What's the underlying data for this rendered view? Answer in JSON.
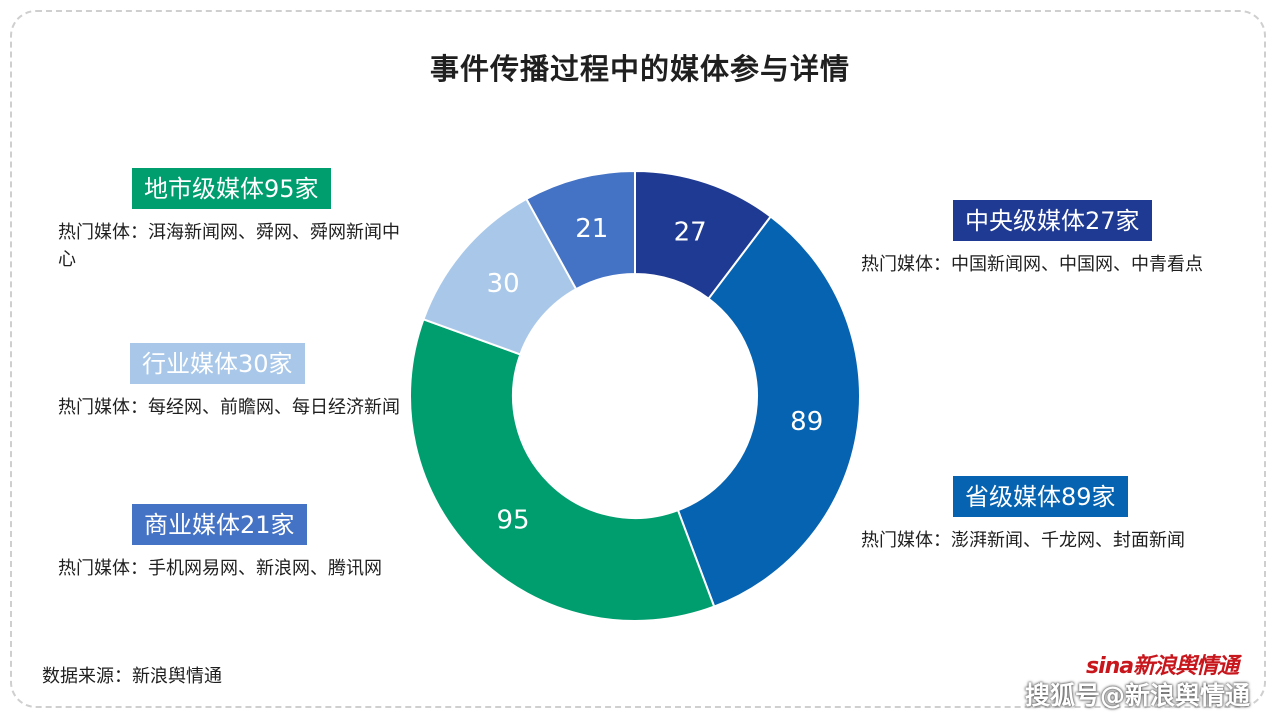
{
  "title": "事件传播过程中的媒体参与详情",
  "labels": [
    {
      "key": "dishi",
      "badge": "地市级媒体95家",
      "desc": "热门媒体：洱海新闻网、舜网、舜网新闻中心",
      "color": "#009e6e"
    },
    {
      "key": "hangye",
      "badge": "行业媒体30家",
      "desc": "热门媒体：每经网、前瞻网、每日经济新闻",
      "color": "#a9c8e9"
    },
    {
      "key": "shangye",
      "badge": "商业媒体21家",
      "desc": "热门媒体：手机网易网、新浪网、腾讯网",
      "color": "#4472c4"
    },
    {
      "key": "zhongyang",
      "badge": "中央级媒体27家",
      "desc": "热门媒体：中国新闻网、中国网、中青看点",
      "color": "#1f3a93"
    },
    {
      "key": "shengji",
      "badge": "省级媒体89家",
      "desc": "热门媒体：澎湃新闻、千龙网、封面新闻",
      "color": "#0563b1"
    }
  ],
  "chart_data": {
    "type": "pie",
    "donut": true,
    "start": "top, clockwise",
    "categories": [
      "中央级媒体",
      "省级媒体",
      "地市级媒体",
      "行业媒体",
      "商业媒体"
    ],
    "values": [
      27,
      89,
      95,
      30,
      21
    ],
    "colors": [
      "#1f3a93",
      "#0563b1",
      "#009e6e",
      "#a9c8e9",
      "#4472c4"
    ],
    "data_labels": [
      "27",
      "89",
      "95",
      "30",
      "21"
    ]
  },
  "source": "数据来源：新浪舆情通",
  "logo": "sina新浪舆情通",
  "watermark": "搜狐号@新浪舆情通"
}
